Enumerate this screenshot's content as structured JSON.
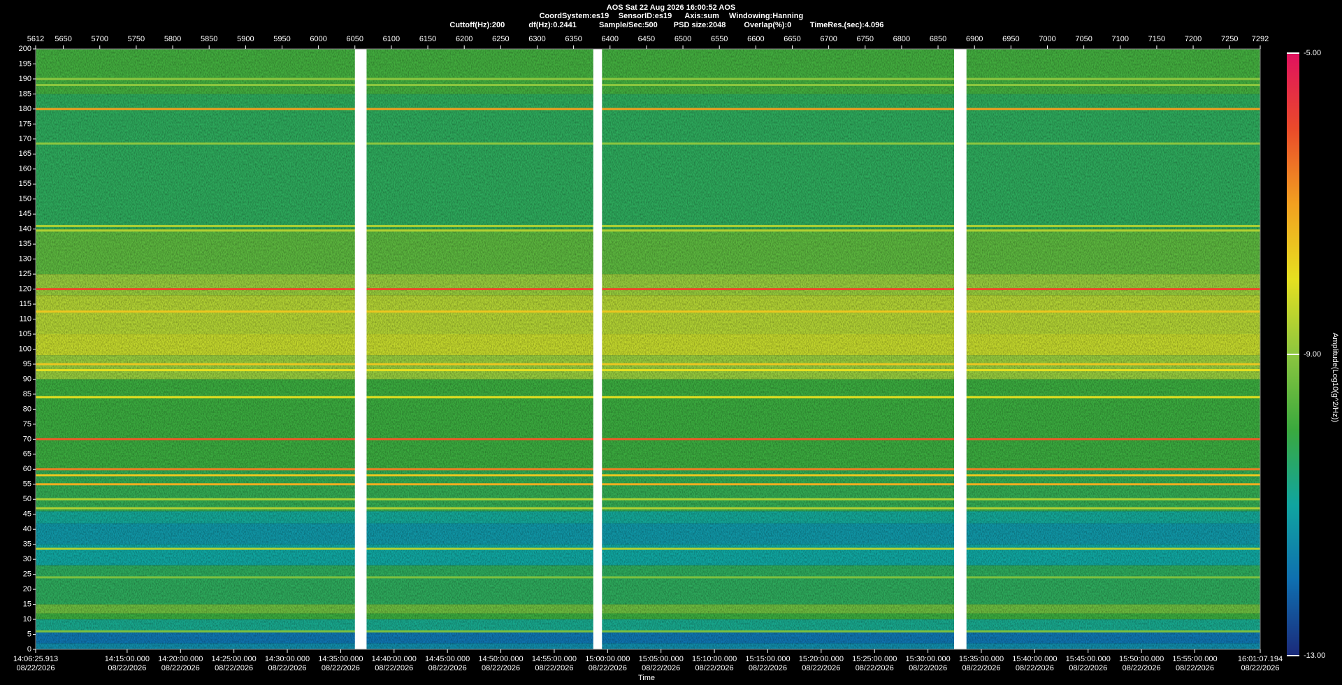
{
  "chart_data": {
    "type": "spectrogram",
    "title": "AOS  Sat 22 Aug 2026 16:00:52  AOS",
    "subtitle": [
      "CoordSystem:es19",
      "SensorID:es19",
      "Axis:sum",
      "Windowing:Hanning"
    ],
    "settings_line": [
      "Cuttoff(Hz):200",
      "df(Hz):0.2441",
      "Sample/Sec:500",
      "PSD size:2048",
      "Overlap(%):0",
      "TimeRes.(sec):4.096"
    ],
    "xlabel": "Time",
    "colorbar_label": "Amplitude(Log10(g^2/Hz))",
    "xlim": [
      5612,
      7292
    ],
    "xticks": [
      5612,
      5650,
      5700,
      5750,
      5800,
      5850,
      5900,
      5950,
      6000,
      6050,
      6100,
      6150,
      6200,
      6250,
      6300,
      6350,
      6400,
      6450,
      6500,
      6550,
      6600,
      6650,
      6700,
      6750,
      6800,
      6850,
      6900,
      6950,
      7000,
      7050,
      7100,
      7150,
      7200,
      7250,
      7292
    ],
    "time_ticks": [
      {
        "value": 5612,
        "label": "14:06:25.913"
      },
      {
        "value": 5737.51,
        "label": "14:15:00.000"
      },
      {
        "value": 5810.76,
        "label": "14:20:00.000"
      },
      {
        "value": 5884.0,
        "label": "14:25:00.000"
      },
      {
        "value": 5957.24,
        "label": "14:30:00.000"
      },
      {
        "value": 6030.48,
        "label": "14:35:00.000"
      },
      {
        "value": 6103.72,
        "label": "14:40:00.000"
      },
      {
        "value": 6176.96,
        "label": "14:45:00.000"
      },
      {
        "value": 6250.2,
        "label": "14:50:00.000"
      },
      {
        "value": 6323.45,
        "label": "14:55:00.000"
      },
      {
        "value": 6396.69,
        "label": "15:00:00.000"
      },
      {
        "value": 6469.93,
        "label": "15:05:00.000"
      },
      {
        "value": 6543.17,
        "label": "15:10:00.000"
      },
      {
        "value": 6616.41,
        "label": "15:15:00.000"
      },
      {
        "value": 6689.65,
        "label": "15:20:00.000"
      },
      {
        "value": 6762.9,
        "label": "15:25:00.000"
      },
      {
        "value": 6836.14,
        "label": "15:30:00.000"
      },
      {
        "value": 6909.38,
        "label": "15:35:00.000"
      },
      {
        "value": 6982.62,
        "label": "15:40:00.000"
      },
      {
        "value": 7055.86,
        "label": "15:45:00.000"
      },
      {
        "value": 7129.1,
        "label": "15:50:00.000"
      },
      {
        "value": 7202.35,
        "label": "15:55:00.000"
      },
      {
        "value": 7292,
        "label": "16:01:07.194"
      }
    ],
    "time_tick_dates": [
      "08/22/2026",
      "08/22/2026",
      "08/22/2026",
      "08/22/2026",
      "08/22/2026",
      "08/22/2026",
      "08/22/2026",
      "08/22/2026",
      "08/22/2026",
      "08/22/2026",
      "08/22/2026",
      "08/22/2026",
      "08/22/2026",
      "08/22/2026",
      "08/22/2026",
      "08/22/2026",
      "08/22/2026",
      "08/22/2026",
      "08/22/2026",
      "08/22/2026",
      "08/22/2026",
      "08/22/2026",
      "08/22/2026"
    ],
    "ylim": [
      0,
      200
    ],
    "yticks": [
      0,
      5,
      10,
      15,
      20,
      25,
      30,
      35,
      40,
      45,
      50,
      55,
      60,
      65,
      70,
      75,
      80,
      85,
      90,
      95,
      100,
      105,
      110,
      115,
      120,
      125,
      130,
      135,
      140,
      145,
      150,
      155,
      160,
      165,
      170,
      175,
      180,
      185,
      190,
      195,
      200
    ],
    "clim": [
      -13,
      -5
    ],
    "cticks": [
      {
        "value": -13,
        "label": "-13.00"
      },
      {
        "value": -9,
        "label": "-9.00"
      },
      {
        "value": -5,
        "label": "-5.00"
      }
    ],
    "colormap": [
      "#1b2a7a",
      "#0f6fb0",
      "#10a5a0",
      "#3aa93e",
      "#8cc63f",
      "#e6e020",
      "#f2a020",
      "#ea4a2a",
      "#e0115f"
    ],
    "bands": {
      "ranges": [
        [
          0,
          2
        ],
        [
          2,
          6
        ],
        [
          6,
          10
        ],
        [
          10,
          12
        ],
        [
          12,
          15
        ],
        [
          15,
          28
        ],
        [
          28,
          35
        ],
        [
          35,
          42
        ],
        [
          42,
          46
        ],
        [
          46,
          60
        ],
        [
          60,
          90
        ],
        [
          90,
          98
        ],
        [
          98,
          105
        ],
        [
          105,
          118
        ],
        [
          118,
          125
        ],
        [
          125,
          140
        ],
        [
          140,
          185
        ],
        [
          185,
          200
        ]
      ],
      "values": [
        -11.5,
        -11.9,
        -10.8,
        -10.0,
        -9.4,
        -10.3,
        -11.0,
        -11.3,
        -10.9,
        -10.2,
        -10.0,
        -8.9,
        -8.4,
        -8.6,
        -8.9,
        -9.6,
        -10.3,
        -9.9
      ]
    },
    "lines": {
      "freqs": [
        6,
        24,
        33.5,
        47,
        50,
        55,
        58,
        60,
        70,
        84,
        93,
        95,
        112.5,
        120,
        139.5,
        141,
        168.5,
        180,
        188,
        190
      ],
      "values": [
        -9.2,
        -9.2,
        -8.6,
        -8.6,
        -8.6,
        -7.2,
        -7.6,
        -6.6,
        -6.2,
        -8.0,
        -8.0,
        -7.6,
        -7.6,
        -6.0,
        -8.6,
        -8.6,
        -9.0,
        -7.0,
        -9.0,
        -9.0
      ]
    },
    "gaps": [
      [
        6050,
        6066
      ],
      [
        6377,
        6389
      ],
      [
        6872,
        6889
      ]
    ]
  }
}
